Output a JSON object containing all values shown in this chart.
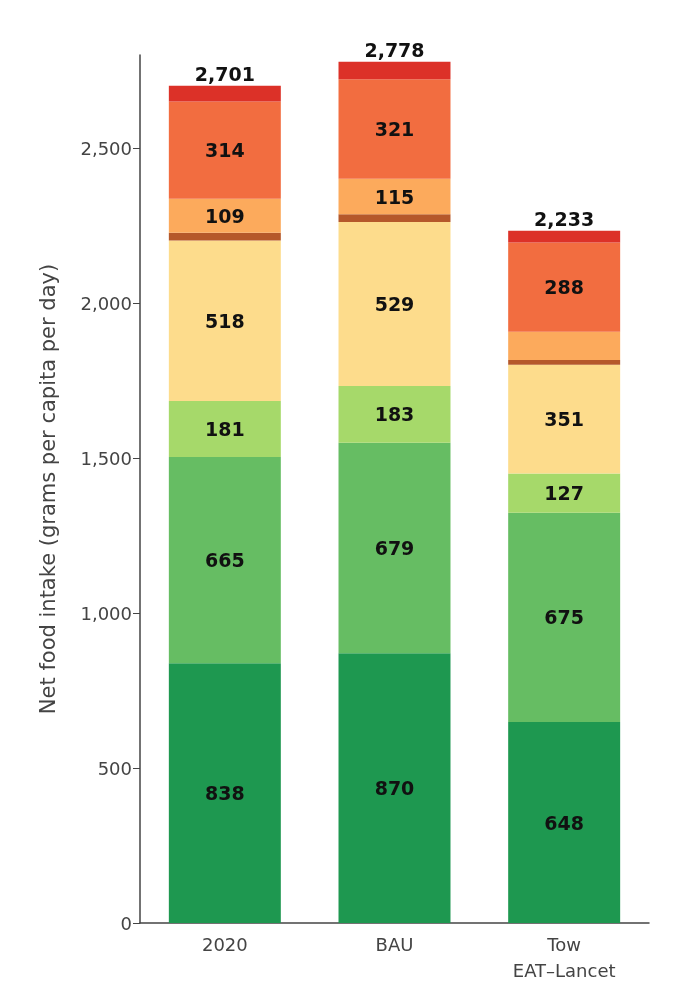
{
  "chart_data": {
    "type": "bar",
    "stacked": true,
    "ylabel": "Net food intake (grams per capita per day)",
    "categories": [
      "2020",
      "BAU",
      "Tow\nEAT–Lancet"
    ],
    "series": [
      {
        "color": "#1e9850",
        "values": [
          838,
          870,
          648
        ],
        "value_labels": [
          "838",
          "870",
          "648"
        ]
      },
      {
        "color": "#66bd63",
        "values": [
          665,
          679,
          675
        ],
        "value_labels": [
          "665",
          "679",
          "675"
        ]
      },
      {
        "color": "#a6d96a",
        "values": [
          181,
          183,
          127
        ],
        "value_labels": [
          "181",
          "183",
          "127"
        ]
      },
      {
        "color": "#fddc8c",
        "values": [
          518,
          529,
          351
        ],
        "value_labels": [
          "518",
          "529",
          "351"
        ]
      },
      {
        "color": "#b5582a",
        "values": [
          25,
          25,
          15
        ],
        "value_labels": [
          null,
          null,
          null
        ]
      },
      {
        "color": "#fcaa5c",
        "values": [
          109,
          115,
          91
        ],
        "value_labels": [
          "109",
          "115",
          null
        ]
      },
      {
        "color": "#f26d40",
        "values": [
          314,
          321,
          288
        ],
        "value_labels": [
          "314",
          "321",
          "288"
        ]
      },
      {
        "color": "#dc3128",
        "values": [
          51,
          56,
          38
        ],
        "value_labels": [
          null,
          null,
          null
        ]
      }
    ],
    "totals": [
      "2,701",
      "2,778",
      "2,233"
    ],
    "ylim": [
      0,
      2800
    ],
    "yticks": [
      0,
      {
        "value": 500,
        "label": "500"
      },
      {
        "value": 1000,
        "label": "1,000"
      },
      {
        "value": 1500,
        "label": "1,500"
      },
      {
        "value": 2000,
        "label": "2,000"
      },
      {
        "value": 2500,
        "label": "2,500"
      }
    ],
    "grid": false
  }
}
